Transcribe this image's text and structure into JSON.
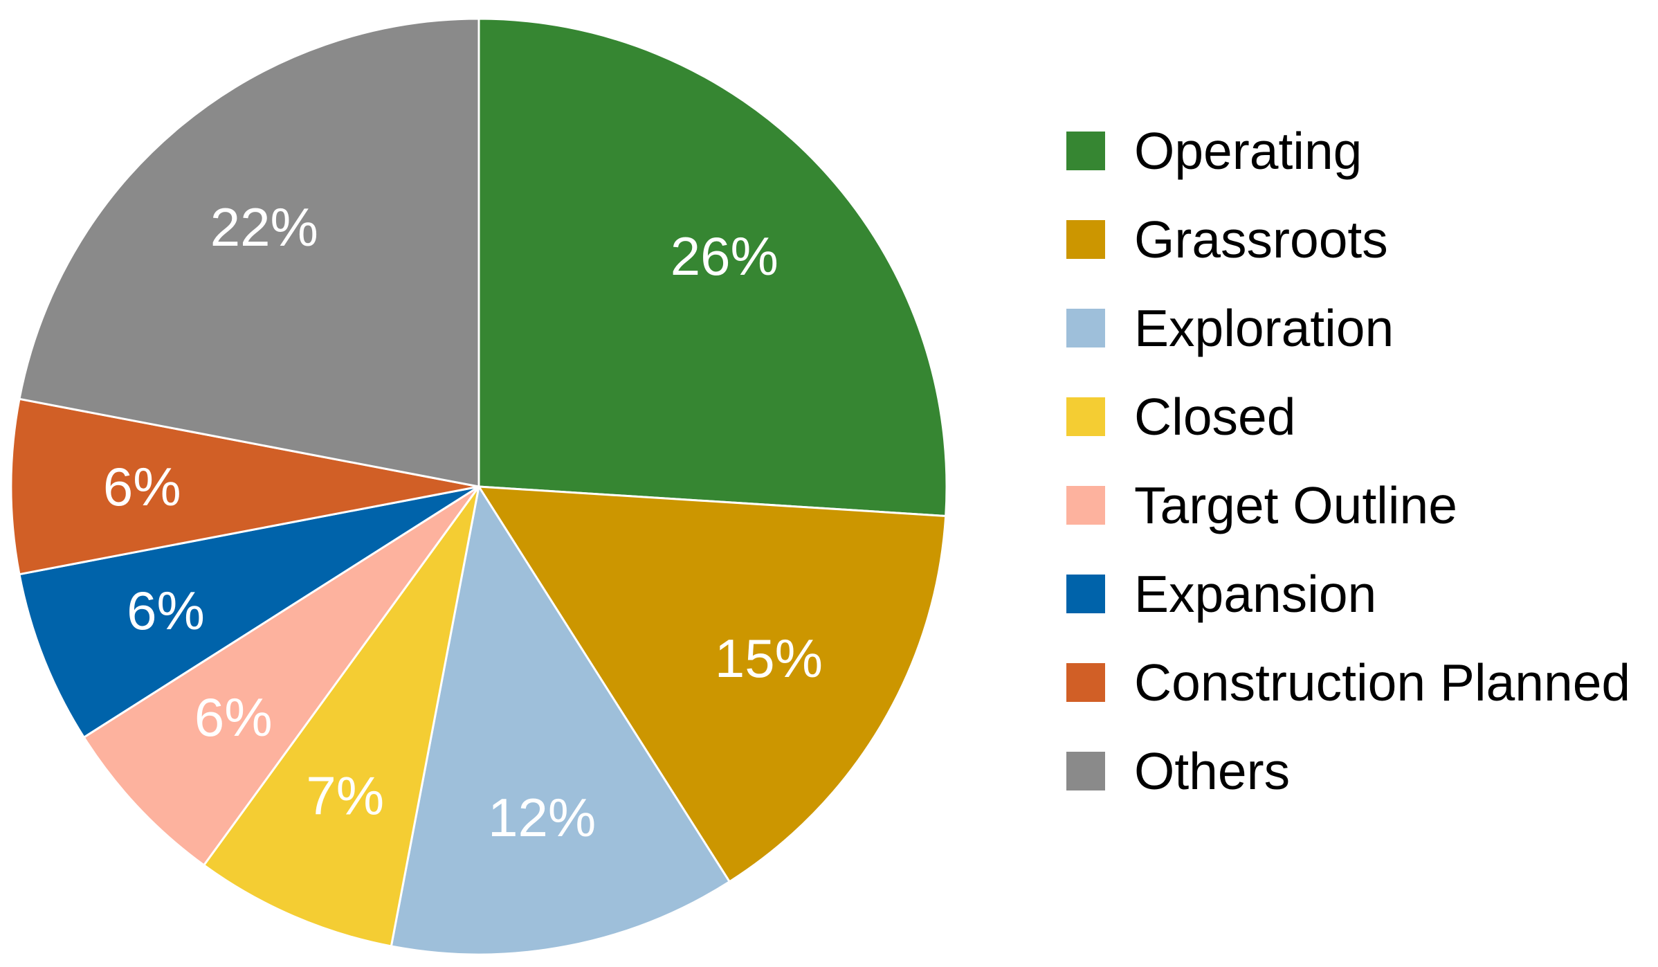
{
  "chart_data": {
    "type": "pie",
    "title": "",
    "legend_position": "right",
    "slices": [
      {
        "label": "Operating",
        "value": 26,
        "display": "26%",
        "color": "#368632"
      },
      {
        "label": "Grassroots",
        "value": 15,
        "display": "15%",
        "color": "#CC9600"
      },
      {
        "label": "Exploration",
        "value": 12,
        "display": "12%",
        "color": "#9EBFDA"
      },
      {
        "label": "Closed",
        "value": 7,
        "display": "7%",
        "color": "#F4CD33"
      },
      {
        "label": "Target Outline",
        "value": 6,
        "display": "6%",
        "color": "#FDB29E"
      },
      {
        "label": "Expansion",
        "value": 6,
        "display": "6%",
        "color": "#0063AA"
      },
      {
        "label": "Construction Planned",
        "value": 6,
        "display": "6%",
        "color": "#D15F26"
      },
      {
        "label": "Others",
        "value": 22,
        "display": "22%",
        "color": "#8A8A8A"
      }
    ]
  }
}
